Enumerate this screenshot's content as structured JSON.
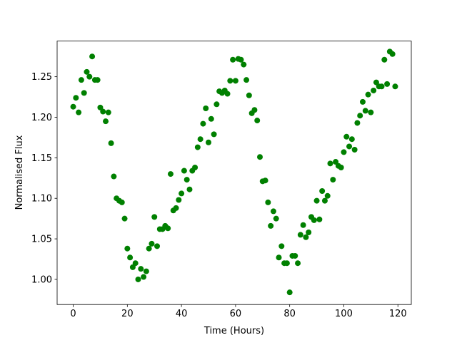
{
  "chart_data": {
    "type": "scatter",
    "xlabel": "Time (Hours)",
    "ylabel": "Normalised Flux",
    "x": [
      0,
      1,
      2,
      3,
      4,
      5,
      6,
      7,
      8,
      9,
      10,
      11,
      12,
      13,
      14,
      15,
      16,
      17,
      18,
      19,
      20,
      21,
      22,
      23,
      24,
      25,
      26,
      27,
      28,
      29,
      30,
      31,
      32,
      33,
      34,
      35,
      36,
      37,
      38,
      39,
      40,
      41,
      42,
      43,
      44,
      45,
      46,
      47,
      48,
      49,
      50,
      51,
      52,
      53,
      54,
      55,
      56,
      57,
      58,
      59,
      60,
      61,
      62,
      63,
      64,
      65,
      66,
      67,
      68,
      69,
      70,
      71,
      72,
      73,
      74,
      75,
      76,
      77,
      78,
      79,
      80,
      81,
      82,
      83,
      84,
      85,
      86,
      87,
      88,
      89,
      90,
      91,
      92,
      93,
      94,
      95,
      96,
      97,
      98,
      99,
      100,
      101,
      102,
      103,
      104,
      105,
      106,
      107,
      108,
      109,
      110,
      111,
      112,
      113,
      114,
      115,
      116,
      117,
      118,
      119
    ],
    "values": [
      1.213,
      1.224,
      1.206,
      1.246,
      1.23,
      1.256,
      1.25,
      1.275,
      1.246,
      1.246,
      1.212,
      1.207,
      1.195,
      1.206,
      1.168,
      1.127,
      1.1,
      1.097,
      1.095,
      1.075,
      1.038,
      1.027,
      1.015,
      1.02,
      1.0,
      1.013,
      1.003,
      1.01,
      1.038,
      1.044,
      1.077,
      1.041,
      1.062,
      1.062,
      1.066,
      1.063,
      1.13,
      1.085,
      1.088,
      1.098,
      1.106,
      1.134,
      1.123,
      1.111,
      1.134,
      1.138,
      1.163,
      1.173,
      1.192,
      1.211,
      1.169,
      1.198,
      1.179,
      1.216,
      1.232,
      1.23,
      1.233,
      1.229,
      1.245,
      1.271,
      1.245,
      1.272,
      1.271,
      1.265,
      1.246,
      1.227,
      1.205,
      1.209,
      1.196,
      1.151,
      1.121,
      1.122,
      1.095,
      1.066,
      1.084,
      1.075,
      1.027,
      1.041,
      1.02,
      1.02,
      0.984,
      1.029,
      1.029,
      1.02,
      1.055,
      1.067,
      1.052,
      1.058,
      1.077,
      1.073,
      1.097,
      1.074,
      1.109,
      1.097,
      1.103,
      1.143,
      1.123,
      1.145,
      1.14,
      1.138,
      1.157,
      1.176,
      1.164,
      1.173,
      1.16,
      1.193,
      1.202,
      1.219,
      1.208,
      1.228,
      1.206,
      1.233,
      1.243,
      1.238,
      1.238,
      1.271,
      1.241,
      1.281,
      1.278,
      1.238
    ],
    "color": "#008000",
    "xlim": [
      -5.95,
      124.95
    ],
    "xticks": [
      0,
      20,
      40,
      60,
      80,
      100,
      120
    ],
    "ylim": [
      0.969,
      1.294
    ],
    "yticks": [
      {
        "value": 1.0,
        "label": "1.00"
      },
      {
        "value": 1.05,
        "label": "1.05"
      },
      {
        "value": 1.1,
        "label": "1.10"
      },
      {
        "value": 1.15,
        "label": "1.15"
      },
      {
        "value": 1.2,
        "label": "1.20"
      },
      {
        "value": 1.25,
        "label": "1.25"
      }
    ]
  }
}
